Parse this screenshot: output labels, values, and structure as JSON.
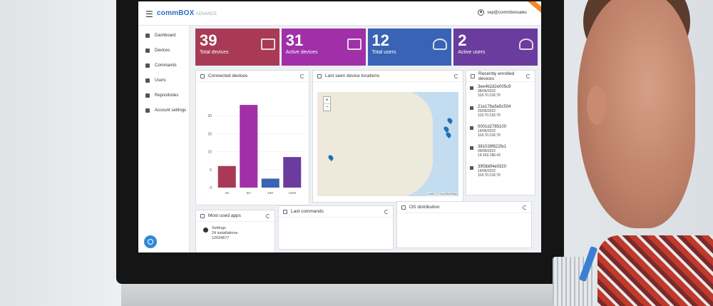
{
  "header": {
    "brand": "comm",
    "brand_accent": "BOX",
    "brand_suffix": "ADVANCE",
    "user_email": "sep@commboxsales"
  },
  "sidebar": {
    "items": [
      {
        "label": "Dashboard",
        "icon": "dashboard-icon"
      },
      {
        "label": "Devices",
        "icon": "devices-icon"
      },
      {
        "label": "Commands",
        "icon": "commands-icon"
      },
      {
        "label": "Users",
        "icon": "users-icon"
      },
      {
        "label": "Repositories",
        "icon": "repositories-icon"
      },
      {
        "label": "Account settings",
        "icon": "gear-icon"
      }
    ]
  },
  "stats": [
    {
      "value": "39",
      "label": "Total devices",
      "color": "#a83a55",
      "icon": "devices-icon"
    },
    {
      "value": "31",
      "label": "Active devices",
      "color": "#a02fa8",
      "icon": "cast-icon"
    },
    {
      "value": "12",
      "label": "Total users",
      "color": "#3a63b5",
      "icon": "users-icon"
    },
    {
      "value": "2",
      "label": "Active users",
      "color": "#6a3c9e",
      "icon": "users-outline-icon"
    }
  ],
  "cards": {
    "connected_devices": "Connected devices",
    "locations": "Last seen device locations",
    "recently_enrolled": "Recently enrolled devices",
    "most_used_apps": "Most used apps",
    "last_commands": "Last commands",
    "os_distribution": "OS distribution"
  },
  "chart_data": {
    "type": "bar",
    "categories": [
      "4H",
      "8H",
      "24H",
      ">24H"
    ],
    "values": [
      6,
      23,
      2.5,
      8.5
    ],
    "colors": [
      "#a83a55",
      "#a02fa8",
      "#3a63b5",
      "#6a3c9e"
    ],
    "yticks": [
      "0",
      "5",
      "10",
      "15",
      "20"
    ],
    "ylim": [
      0,
      25
    ]
  },
  "map": {
    "zoom_in": "+",
    "zoom_out": "−",
    "attribution": "Leaflet | © OpenStreetMap"
  },
  "enrolled": [
    {
      "id": "3ee4b2d2e005c9",
      "date": "08/06/2022",
      "ip": "118.70.218.79"
    },
    {
      "id": "21e178a5e5c504",
      "date": "20/06/2022",
      "ip": "118.70.218.79"
    },
    {
      "id": "0001d2785100",
      "date": "14/06/2022",
      "ip": "118.70.218.79"
    },
    {
      "id": "381028f622fe1",
      "date": "09/06/2022",
      "ip": "14.163.186.42"
    },
    {
      "id": "39f3b8f4e0320",
      "date": "14/06/2022",
      "ip": "118.70.218.79"
    }
  ],
  "apps": [
    {
      "name": "Settings",
      "installs": "24 installations",
      "version": "12034677"
    }
  ]
}
